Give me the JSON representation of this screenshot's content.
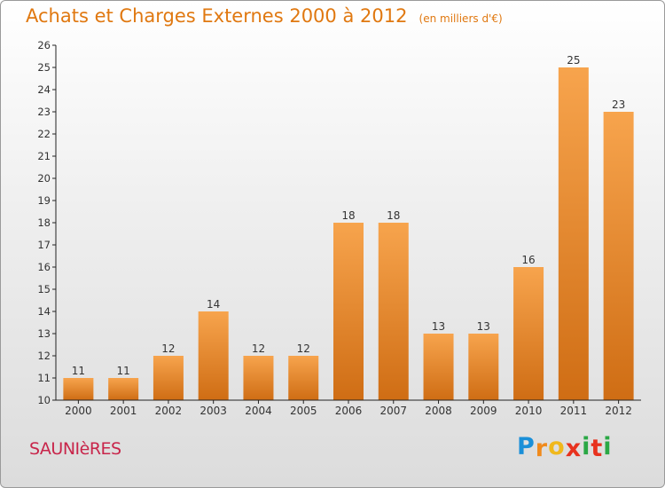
{
  "header": {
    "title": "Achats et Charges Externes 2000 à 2012",
    "subtitle": "(en milliers d'€)"
  },
  "footer": {
    "commune": "SAUNIèRES",
    "brand_letters": [
      "P",
      "r",
      "o",
      "x",
      "i",
      "t",
      "i"
    ],
    "brand_colors": [
      "#1a8fd8",
      "#f08a1c",
      "#f0b81c",
      "#e8321e",
      "#2aa845",
      "#e8321e",
      "#2aa845"
    ]
  },
  "colors": {
    "bar_top": "#f7a44d",
    "bar_bottom": "#cf6d14",
    "text": "#333333"
  },
  "chart_data": {
    "type": "bar",
    "categories": [
      "2000",
      "2001",
      "2002",
      "2003",
      "2004",
      "2005",
      "2006",
      "2007",
      "2008",
      "2009",
      "2010",
      "2011",
      "2012"
    ],
    "values": [
      11,
      11,
      12,
      14,
      12,
      12,
      18,
      18,
      13,
      13,
      16,
      25,
      23
    ],
    "data_labels": [
      "11",
      "11",
      "12",
      "14",
      "12",
      "12",
      "18",
      "18",
      "13",
      "13",
      "16",
      "25",
      "23"
    ],
    "yticks": [
      "10",
      "11",
      "12",
      "13",
      "14",
      "15",
      "16",
      "17",
      "18",
      "19",
      "20",
      "21",
      "22",
      "23",
      "24",
      "25",
      "26"
    ],
    "ylim": [
      10,
      26
    ],
    "grid": false
  }
}
